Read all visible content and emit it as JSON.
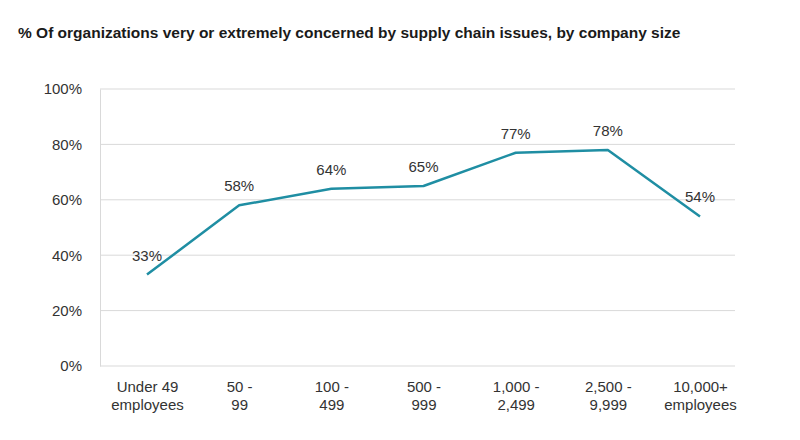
{
  "chart_data": {
    "type": "line",
    "title": "% Of organizations very or extremely concerned by supply chain issues, by company size",
    "categories": [
      "Under 49\nemployees",
      "50 -\n99",
      "100 -\n499",
      "500 -\n999",
      "1,000 -\n2,499",
      "2,500 -\n9,999",
      "10,000+\nemployees"
    ],
    "values": [
      33,
      58,
      64,
      65,
      77,
      78,
      54
    ],
    "value_labels": [
      "33%",
      "58%",
      "64%",
      "65%",
      "77%",
      "78%",
      "54%"
    ],
    "data_labels": true,
    "color": "#1f8ea3",
    "ylim": [
      0,
      100
    ],
    "yticks": [
      {
        "value": 0,
        "label": "0%"
      },
      {
        "value": 20,
        "label": "20%"
      },
      {
        "value": 40,
        "label": "40%"
      },
      {
        "value": 60,
        "label": "60%"
      },
      {
        "value": 80,
        "label": "80%"
      },
      {
        "value": 100,
        "label": "100%"
      }
    ],
    "grid": true
  }
}
